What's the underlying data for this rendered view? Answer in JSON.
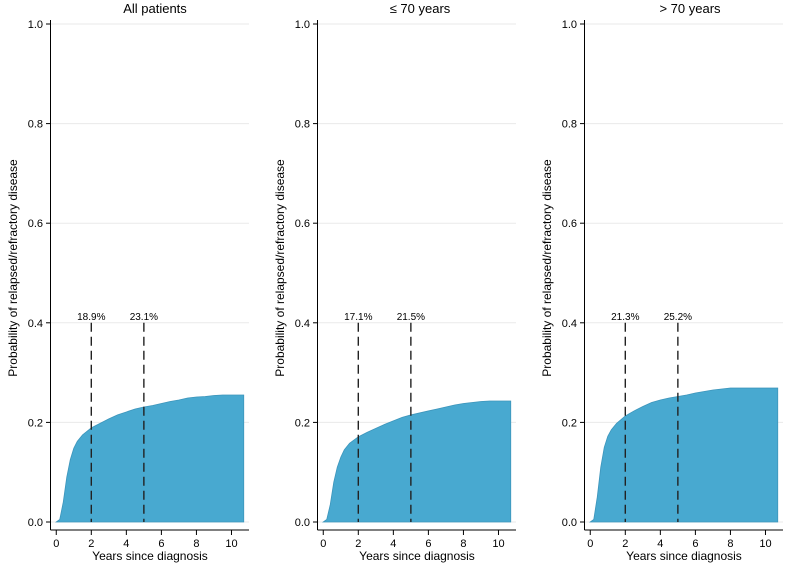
{
  "chart_data": [
    {
      "type": "area",
      "title": "All patients",
      "xlabel": "Years since diagnosis",
      "ylabel": "Probability of relapsed/refractory disease",
      "xlim": [
        -0.3,
        11
      ],
      "ylim": [
        0,
        1
      ],
      "xticks": [
        "0",
        "2",
        "4",
        "6",
        "8",
        "10"
      ],
      "yticks": [
        "0.0",
        "0.2",
        "0.4",
        "0.6",
        "0.8",
        "1.0"
      ],
      "grid": true,
      "x": [
        0,
        0.2,
        0.4,
        0.6,
        0.8,
        1.0,
        1.2,
        1.5,
        2.0,
        2.5,
        3.0,
        3.5,
        4.0,
        4.5,
        5.0,
        5.5,
        6.0,
        6.5,
        7.0,
        7.5,
        8.0,
        8.5,
        9.0,
        9.5,
        10.0,
        10.7
      ],
      "y": [
        0,
        0.005,
        0.04,
        0.09,
        0.125,
        0.148,
        0.162,
        0.175,
        0.189,
        0.198,
        0.207,
        0.215,
        0.221,
        0.227,
        0.231,
        0.234,
        0.238,
        0.242,
        0.245,
        0.249,
        0.251,
        0.252,
        0.254,
        0.255,
        0.255,
        0.255
      ],
      "annotations": [
        {
          "x": 2,
          "label": "18.9%"
        },
        {
          "x": 5,
          "label": "23.1%"
        }
      ],
      "color": "#48a9d0"
    },
    {
      "type": "area",
      "title": "≤ 70 years",
      "xlabel": "Years since diagnosis",
      "ylabel": "Probability of relapsed/refractory disease",
      "xlim": [
        -0.3,
        11
      ],
      "ylim": [
        0,
        1
      ],
      "xticks": [
        "0",
        "2",
        "4",
        "6",
        "8",
        "10"
      ],
      "yticks": [
        "0.0",
        "0.2",
        "0.4",
        "0.6",
        "0.8",
        "1.0"
      ],
      "grid": true,
      "x": [
        0,
        0.2,
        0.4,
        0.6,
        0.8,
        1.0,
        1.2,
        1.5,
        2.0,
        2.5,
        3.0,
        3.5,
        4.0,
        4.5,
        5.0,
        5.5,
        6.0,
        6.5,
        7.0,
        7.5,
        8.0,
        8.5,
        9.0,
        9.5,
        10.0,
        10.7
      ],
      "y": [
        0,
        0.005,
        0.035,
        0.08,
        0.11,
        0.13,
        0.145,
        0.158,
        0.171,
        0.18,
        0.188,
        0.196,
        0.203,
        0.21,
        0.215,
        0.219,
        0.223,
        0.227,
        0.231,
        0.235,
        0.238,
        0.24,
        0.242,
        0.243,
        0.243,
        0.243
      ],
      "annotations": [
        {
          "x": 2,
          "label": "17.1%"
        },
        {
          "x": 5,
          "label": "21.5%"
        }
      ],
      "color": "#48a9d0"
    },
    {
      "type": "area",
      "title": "> 70 years",
      "xlabel": "Years since diagnosis",
      "ylabel": "Probability of relapsed/refractory disease",
      "xlim": [
        -0.3,
        11
      ],
      "ylim": [
        0,
        1
      ],
      "xticks": [
        "0",
        "2",
        "4",
        "6",
        "8",
        "10"
      ],
      "yticks": [
        "0.0",
        "0.2",
        "0.4",
        "0.6",
        "0.8",
        "1.0"
      ],
      "grid": true,
      "x": [
        0,
        0.2,
        0.4,
        0.6,
        0.8,
        1.0,
        1.2,
        1.5,
        2.0,
        2.5,
        3.0,
        3.5,
        4.0,
        4.5,
        5.0,
        5.5,
        6.0,
        6.5,
        7.0,
        7.5,
        8.0,
        8.5,
        9.0,
        9.5,
        10.0,
        10.7
      ],
      "y": [
        0,
        0.005,
        0.05,
        0.11,
        0.15,
        0.172,
        0.185,
        0.198,
        0.213,
        0.223,
        0.232,
        0.24,
        0.245,
        0.249,
        0.252,
        0.255,
        0.259,
        0.262,
        0.265,
        0.267,
        0.269,
        0.269,
        0.269,
        0.269,
        0.269,
        0.269
      ],
      "annotations": [
        {
          "x": 2,
          "label": "21.3%"
        },
        {
          "x": 5,
          "label": "25.2%"
        }
      ],
      "color": "#48a9d0"
    }
  ]
}
